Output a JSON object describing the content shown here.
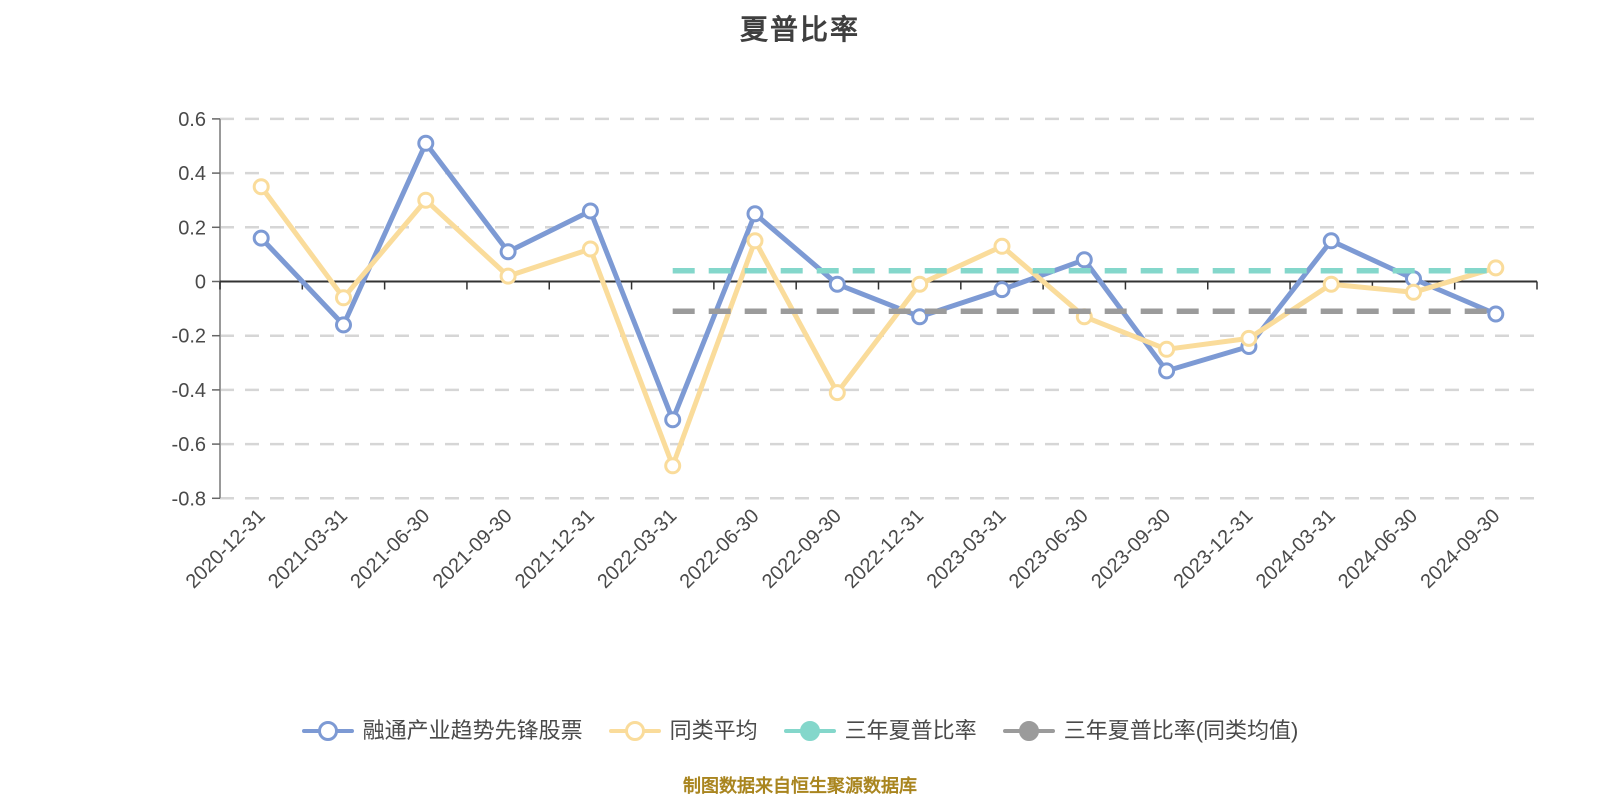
{
  "title": "夏普比率",
  "footer": {
    "note": "制图数据来自恒生聚源数据库"
  },
  "colors": {
    "fund_line": "#7d9ad4",
    "peer_average_line": "#fadc9b",
    "three_year_sharpe_line": "#84d7cb",
    "three_year_sharpe_peer_line": "#9b9b9b",
    "gridline": "#d6d6d6",
    "zero_axis_line": "#333333",
    "y_axis_line": "#999999",
    "axis_label_text": "#4a4a4a",
    "footer_text": "#a9851f",
    "title_text": "#3f3f3f"
  },
  "legend": [
    {
      "key": "fund",
      "label": "融通产业趋势先锋股票",
      "color": "#7d9ad4",
      "dot_fill": "#ffffff"
    },
    {
      "key": "peer-average",
      "label": "同类平均",
      "color": "#fadc9b",
      "dot_fill": "#ffffff"
    },
    {
      "key": "3y-sharpe",
      "label": "三年夏普比率",
      "color": "#84d7cb",
      "dot_fill": "#84d7cb"
    },
    {
      "key": "3y-sharpe-peer",
      "label": "三年夏普比率(同类均值)",
      "color": "#9b9b9b",
      "dot_fill": "#9b9b9b"
    }
  ],
  "chart_data": {
    "type": "line",
    "title": "夏普比率",
    "x": [
      "2020-12-31",
      "2021-03-31",
      "2021-06-30",
      "2021-09-30",
      "2021-12-31",
      "2022-03-31",
      "2022-06-30",
      "2022-09-30",
      "2022-12-31",
      "2023-03-31",
      "2023-06-30",
      "2023-09-30",
      "2023-12-31",
      "2024-03-31",
      "2024-06-30",
      "2024-09-30"
    ],
    "series": [
      {
        "key": "fund",
        "name": "融通产业趋势先锋股票",
        "color": "#7d9ad4",
        "line_style": "solid",
        "marker": "circle",
        "values": [
          0.16,
          -0.16,
          0.51,
          0.11,
          0.26,
          -0.51,
          0.25,
          -0.01,
          -0.13,
          -0.03,
          0.08,
          -0.33,
          -0.24,
          0.15,
          0.01,
          -0.12
        ]
      },
      {
        "key": "peer-average",
        "name": "同类平均",
        "color": "#fadc9b",
        "line_style": "solid",
        "marker": "circle",
        "values": [
          0.35,
          -0.06,
          0.3,
          0.02,
          0.12,
          -0.68,
          0.15,
          -0.41,
          -0.01,
          0.13,
          -0.13,
          -0.25,
          -0.21,
          -0.01,
          -0.04,
          0.05
        ]
      },
      {
        "key": "3y-sharpe",
        "name": "三年夏普比率",
        "color": "#84d7cb",
        "line_style": "dashed",
        "marker": "none",
        "values": [
          null,
          null,
          null,
          null,
          null,
          0.04,
          0.04,
          0.04,
          0.04,
          0.04,
          0.04,
          0.04,
          0.04,
          0.04,
          0.04,
          0.04
        ]
      },
      {
        "key": "3y-sharpe-peer",
        "name": "三年夏普比率(同类均值)",
        "color": "#9b9b9b",
        "line_style": "dashed",
        "marker": "none",
        "values": [
          null,
          null,
          null,
          null,
          null,
          -0.11,
          -0.11,
          -0.11,
          -0.11,
          -0.11,
          -0.11,
          -0.11,
          -0.11,
          -0.11,
          -0.11,
          -0.11
        ]
      }
    ],
    "ylim": [
      -0.8,
      0.6
    ],
    "yticks": [
      0.6,
      0.4,
      0.2,
      0,
      -0.2,
      -0.4,
      -0.6,
      -0.8
    ],
    "x_label_rotation_deg": 45,
    "grid": {
      "horizontal_gridlines": "dashed",
      "vertical_gridlines": "none"
    },
    "legend_position": "bottom"
  }
}
